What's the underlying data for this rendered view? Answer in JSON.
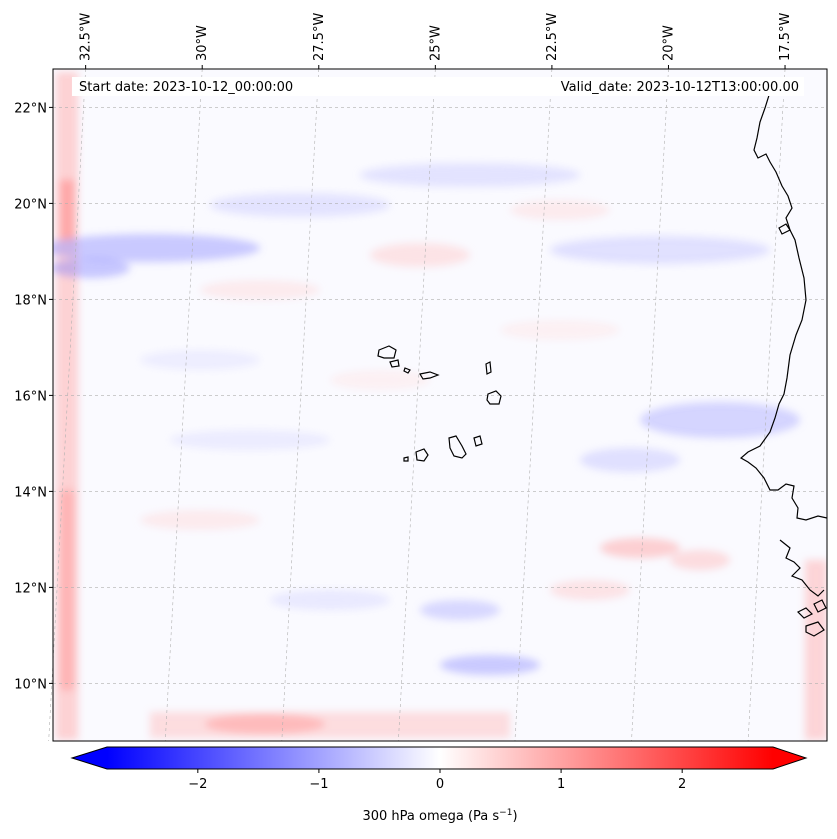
{
  "map": {
    "start_label": "Start date: 2023-10-12_00:00:00",
    "valid_label": "Valid_date: 2023-10-12T13:00:00.00",
    "variable": "300 hPa omega",
    "extent": {
      "lon": [
        -33.2,
        -16.6
      ],
      "lat": [
        8.8,
        22.8
      ]
    },
    "lon_ticks": [
      {
        "value": -32.5,
        "label": "32.5°W"
      },
      {
        "value": -30.0,
        "label": "30°W"
      },
      {
        "value": -27.5,
        "label": "27.5°W"
      },
      {
        "value": -25.0,
        "label": "25°W"
      },
      {
        "value": -22.5,
        "label": "22.5°W"
      },
      {
        "value": -20.0,
        "label": "20°W"
      },
      {
        "value": -17.5,
        "label": "17.5°W"
      }
    ],
    "lat_ticks": [
      {
        "value": 22,
        "label": "22°N"
      },
      {
        "value": 20,
        "label": "20°N"
      },
      {
        "value": 18,
        "label": "18°N"
      },
      {
        "value": 16,
        "label": "16°N"
      },
      {
        "value": 14,
        "label": "14°N"
      },
      {
        "value": 12,
        "label": "12°N"
      },
      {
        "value": 10,
        "label": "10°N"
      }
    ]
  },
  "colorbar": {
    "label": "300 hPa omega (Pa s",
    "label_superscript": "−1",
    "label_close": ")",
    "min": -2.75,
    "max": 2.75,
    "ticks": [
      {
        "value": -2,
        "label": "−2"
      },
      {
        "value": -1,
        "label": "−1"
      },
      {
        "value": 0,
        "label": "0"
      },
      {
        "value": 1,
        "label": "1"
      },
      {
        "value": 2,
        "label": "2"
      }
    ],
    "colors": {
      "negative": "#0000ff",
      "neutral": "#ffffff",
      "positive": "#ff0000"
    }
  }
}
